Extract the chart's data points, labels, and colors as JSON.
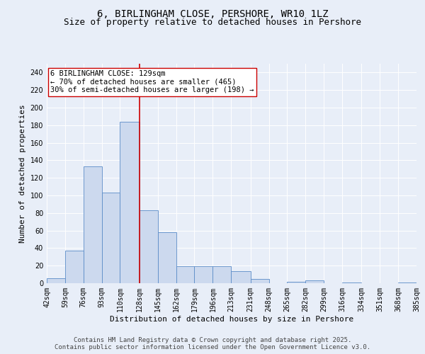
{
  "title": "6, BIRLINGHAM CLOSE, PERSHORE, WR10 1LZ",
  "subtitle": "Size of property relative to detached houses in Pershore",
  "xlabel": "Distribution of detached houses by size in Pershore",
  "ylabel": "Number of detached properties",
  "bar_values": [
    6,
    37,
    133,
    103,
    184,
    83,
    58,
    19,
    19,
    19,
    14,
    5,
    0,
    2,
    3,
    0,
    1,
    0,
    0,
    1
  ],
  "bar_labels": [
    "42sqm",
    "59sqm",
    "76sqm",
    "93sqm",
    "110sqm",
    "128sqm",
    "145sqm",
    "162sqm",
    "179sqm",
    "196sqm",
    "213sqm",
    "231sqm",
    "248sqm",
    "265sqm",
    "282sqm",
    "299sqm",
    "316sqm",
    "334sqm",
    "351sqm",
    "368sqm",
    "385sqm"
  ],
  "bin_edges": [
    42,
    59,
    76,
    93,
    110,
    128,
    145,
    162,
    179,
    196,
    213,
    231,
    248,
    265,
    282,
    299,
    316,
    334,
    351,
    368,
    385
  ],
  "bar_color": "#ccd9ee",
  "bar_edge_color": "#5b8cc8",
  "property_line_x": 128,
  "property_line_color": "#cc0000",
  "annotation_text": "6 BIRLINGHAM CLOSE: 129sqm\n← 70% of detached houses are smaller (465)\n30% of semi-detached houses are larger (198) →",
  "annotation_box_color": "#ffffff",
  "annotation_box_edge": "#cc0000",
  "ylim": [
    0,
    250
  ],
  "yticks": [
    0,
    20,
    40,
    60,
    80,
    100,
    120,
    140,
    160,
    180,
    200,
    220,
    240
  ],
  "bg_color": "#e8eef8",
  "plot_bg_color": "#e8eef8",
  "footer_text": "Contains HM Land Registry data © Crown copyright and database right 2025.\nContains public sector information licensed under the Open Government Licence v3.0.",
  "title_fontsize": 10,
  "subtitle_fontsize": 9,
  "xlabel_fontsize": 8,
  "ylabel_fontsize": 8,
  "tick_fontsize": 7,
  "annotation_fontsize": 7.5,
  "footer_fontsize": 6.5
}
